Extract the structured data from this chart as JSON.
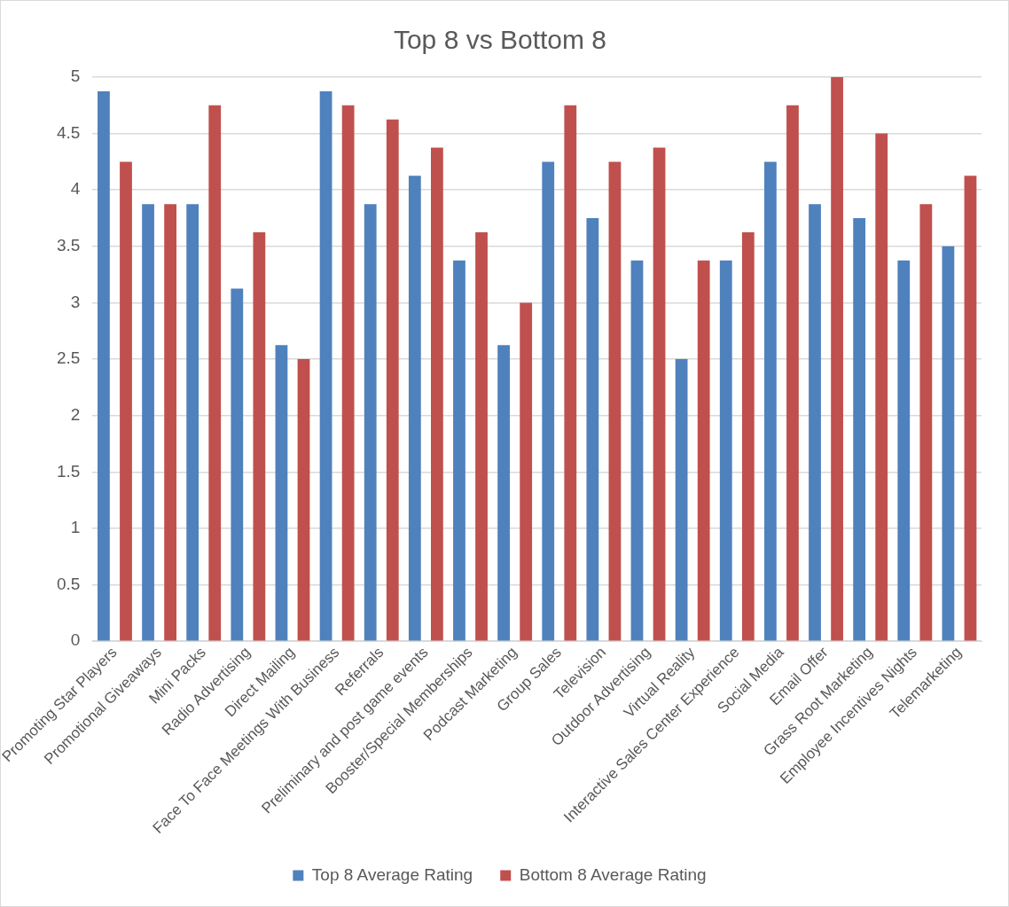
{
  "chart_data": {
    "type": "bar",
    "title": "Top 8 vs Bottom 8",
    "categories": [
      "Promoting Star Players",
      "Promotional Giveaways",
      "Mini Packs",
      "Radio Advertising",
      "Direct Mailing",
      "Face To Face Meetings With Business",
      "Referrals",
      "Preliminary and post game events",
      "Booster/Special Memberships",
      "Podcast Marketing",
      "Group Sales",
      "Television",
      "Outdoor Advertising",
      "Virtual Reality",
      "Interactive Sales Center Experience",
      "Social Media",
      "Email Offer",
      "Grass Root Marketing",
      "Employee Incentives Nights",
      "Telemarketing"
    ],
    "series": [
      {
        "name": "Top 8 Average Rating",
        "color": "#4f81bd",
        "values": [
          4.875,
          3.875,
          3.875,
          3.125,
          2.625,
          4.875,
          3.875,
          4.125,
          3.375,
          2.625,
          4.25,
          3.75,
          3.375,
          2.5,
          3.375,
          4.25,
          3.875,
          3.75,
          3.375,
          3.5
        ]
      },
      {
        "name": "Bottom 8 Average Rating",
        "color": "#c0504d",
        "values": [
          4.25,
          3.875,
          4.75,
          3.625,
          2.5,
          4.75,
          4.625,
          4.375,
          3.625,
          3,
          4.75,
          4.25,
          4.375,
          3.375,
          3.625,
          4.75,
          5,
          4.5,
          3.875,
          4.125
        ]
      }
    ],
    "ylim": [
      0,
      5
    ],
    "yticks": [
      0,
      0.5,
      1,
      1.5,
      2,
      2.5,
      3,
      3.5,
      4,
      4.5,
      5
    ],
    "grid": "y",
    "legend": "bottom"
  }
}
